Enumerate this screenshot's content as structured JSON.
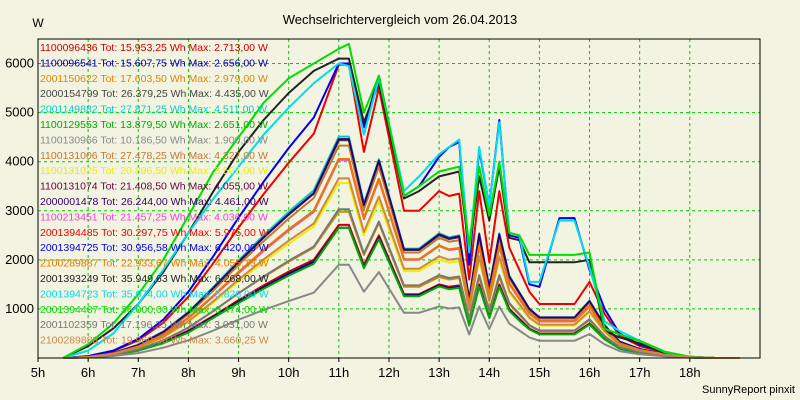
{
  "chart_data": {
    "type": "line",
    "title": "Wechselrichtervergleich vom 26.04.2013",
    "ylabel": "W",
    "xlabel": "",
    "footer": "SunnyReport pinxit",
    "ylim": [
      0,
      6500
    ],
    "yticks": [
      1000,
      2000,
      3000,
      4000,
      5000,
      6000
    ],
    "xlim": [
      5,
      19.4
    ],
    "xticks": [
      {
        "v": 5,
        "label": "5h"
      },
      {
        "v": 6,
        "label": "6h"
      },
      {
        "v": 7,
        "label": "7h"
      },
      {
        "v": 8,
        "label": "8h"
      },
      {
        "v": 9,
        "label": "9h"
      },
      {
        "v": 10,
        "label": "10h"
      },
      {
        "v": 11,
        "label": "11h"
      },
      {
        "v": 12,
        "label": "12h"
      },
      {
        "v": 13,
        "label": "13h"
      },
      {
        "v": 14,
        "label": "14h"
      },
      {
        "v": 15,
        "label": "15h"
      },
      {
        "v": 16,
        "label": "16h"
      },
      {
        "v": 17,
        "label": "17h"
      },
      {
        "v": 18,
        "label": "18h"
      }
    ],
    "grid": true,
    "grid_color": "#00cc00",
    "background": "#f3f3e2",
    "legend_placement": "top-left",
    "x": [
      5.5,
      6.0,
      6.5,
      7.0,
      7.5,
      8.0,
      8.5,
      9.0,
      9.5,
      10.0,
      10.5,
      11.0,
      11.2,
      11.5,
      11.8,
      12.3,
      12.6,
      13.0,
      13.2,
      13.4,
      13.6,
      13.8,
      14.0,
      14.2,
      14.4,
      14.6,
      14.8,
      15.0,
      15.4,
      15.7,
      16.0,
      16.3,
      16.6,
      17.0,
      17.5,
      18.0,
      18.5,
      19.0
    ],
    "legend_entries": [
      {
        "label": "1100096436 Tot: 15.953,25 Wh Max: 2.713,00 W",
        "color": "#cc0000"
      },
      {
        "label": "1100096541 Tot: 15.607,75 Wh Max: 2.656,00 W",
        "color": "#000099"
      },
      {
        "label": "2001150622 Tot: 17.603,50 Wh Max: 2.979,00 W",
        "color": "#dd8800"
      },
      {
        "label": "2000154799 Tot: 26.379,25 Wh Max: 4.435,00 W",
        "color": "#444444"
      },
      {
        "label": "2001149882 Tot: 27.871,25 Wh Max: 4.511,00 W",
        "color": "#00cccc"
      },
      {
        "label": "1100129553 Tot: 13.879,50 Wh Max: 2.651,00 W",
        "color": "#00aa00"
      },
      {
        "label": "1100130966 Tot: 10.186,50 Wh Max: 1.900,00 W",
        "color": "#888888"
      },
      {
        "label": "1100131006 Tot: 27.478,25 Wh Max: 4.327,00 W",
        "color": "#c07838"
      },
      {
        "label": "1100131025 Tot: 20.896,50 Wh Max: 3.565,00 W",
        "color": "#eeee00"
      },
      {
        "label": "1100131074 Tot: 21.408,50 Wh Max: 4.055,00 W",
        "color": "#660044"
      },
      {
        "label": "2000001478 Tot: 26.244,00 Wh Max: 4.461,00 W",
        "color": "#330066"
      },
      {
        "label": "1100213451 Tot: 21.457,25 Wh Max: 4.036,00 W",
        "color": "#ee44cc"
      },
      {
        "label": "2001394485 Tot: 30.297,75 Wh Max: 5.975,00 W",
        "color": "#ee0000"
      },
      {
        "label": "2001394725 Tot: 30.956,58 Wh Max: 6.420,00 W",
        "color": "#0000ee"
      },
      {
        "label": "2100289887 Tot: 22.933,67 Wh Max: 4.055,13 W",
        "color": "#ee7700"
      },
      {
        "label": "2001393249 Tot: 35.949,63 Wh Max: 6.268,00 W",
        "color": "#222222"
      },
      {
        "label": "2001394723 Tot: 35.074,00 Wh Max: 5.826,00 W",
        "color": "#00ddee"
      },
      {
        "label": "2001394487 Tot: 36.000,00 Wh Max: 6.474,00 W",
        "color": "#00dd00"
      },
      {
        "label": "2001102359 Tot: 17.196,25 Wh Max: 3.031,00 W",
        "color": "#777777"
      },
      {
        "label": "2100289888 Tot: 19.960,50 Wh Max: 3.660,25 W",
        "color": "#cc8844"
      }
    ],
    "series": [
      {
        "color": "#cc0000",
        "values": [
          0,
          15,
          60,
          160,
          320,
          560,
          860,
          1180,
          1480,
          1760,
          2000,
          2713,
          2713,
          1900,
          2500,
          1300,
          1300,
          1500,
          1450,
          1480,
          700,
          1500,
          850,
          1500,
          1000,
          800,
          600,
          500,
          500,
          500,
          700,
          400,
          200,
          110,
          50,
          10,
          0,
          0
        ]
      },
      {
        "color": "#000099",
        "values": [
          0,
          15,
          60,
          155,
          310,
          540,
          840,
          1150,
          1440,
          1720,
          1960,
          2656,
          2656,
          1850,
          2450,
          1280,
          1280,
          1480,
          1420,
          1450,
          680,
          1470,
          830,
          1470,
          980,
          780,
          590,
          490,
          490,
          490,
          690,
          390,
          190,
          105,
          48,
          10,
          0,
          0
        ]
      },
      {
        "color": "#dd8800",
        "values": [
          0,
          18,
          70,
          180,
          360,
          620,
          960,
          1320,
          1650,
          1960,
          2250,
          2979,
          2979,
          2100,
          2750,
          1450,
          1450,
          1650,
          1600,
          1630,
          780,
          1650,
          940,
          1650,
          1100,
          880,
          660,
          550,
          550,
          550,
          770,
          440,
          220,
          120,
          55,
          12,
          0,
          0
        ]
      },
      {
        "color": "#444444",
        "values": [
          0,
          25,
          100,
          260,
          530,
          920,
          1420,
          1950,
          2450,
          2920,
          3350,
          4435,
          4435,
          3100,
          4000,
          2200,
          2200,
          2500,
          2420,
          2460,
          1180,
          2500,
          1420,
          2500,
          1650,
          1320,
          990,
          820,
          820,
          820,
          1150,
          660,
          330,
          180,
          80,
          18,
          0,
          0
        ]
      },
      {
        "color": "#00cccc",
        "values": [
          0,
          26,
          105,
          270,
          540,
          940,
          1450,
          1990,
          2500,
          2980,
          3420,
          4511,
          4511,
          3150,
          4050,
          2230,
          2230,
          2540,
          2460,
          2500,
          1200,
          2540,
          1440,
          2540,
          1680,
          1340,
          1000,
          830,
          830,
          830,
          1170,
          670,
          335,
          185,
          82,
          18,
          0,
          0
        ]
      },
      {
        "color": "#00aa00",
        "values": [
          0,
          15,
          58,
          150,
          300,
          520,
          820,
          1120,
          1410,
          1680,
          1920,
          2651,
          2651,
          1830,
          2420,
          1260,
          1260,
          1460,
          1400,
          1430,
          660,
          1450,
          810,
          1450,
          960,
          760,
          580,
          480,
          480,
          480,
          680,
          380,
          190,
          100,
          46,
          10,
          0,
          0
        ]
      },
      {
        "color": "#888888",
        "values": [
          0,
          10,
          40,
          100,
          210,
          360,
          560,
          780,
          980,
          1160,
          1330,
          1900,
          1900,
          1350,
          1750,
          920,
          920,
          1050,
          1010,
          1030,
          480,
          1050,
          590,
          1050,
          700,
          560,
          420,
          350,
          350,
          350,
          490,
          280,
          140,
          75,
          35,
          8,
          0,
          0
        ]
      },
      {
        "color": "#c07838",
        "values": [
          0,
          24,
          98,
          255,
          510,
          890,
          1380,
          1900,
          2380,
          2840,
          3260,
          4327,
          4327,
          3030,
          3900,
          2150,
          2150,
          2450,
          2370,
          2400,
          1150,
          2450,
          1390,
          2450,
          1620,
          1300,
          970,
          800,
          800,
          800,
          1120,
          640,
          320,
          175,
          78,
          17,
          0,
          0
        ]
      },
      {
        "color": "#eeee00",
        "values": [
          0,
          20,
          80,
          210,
          420,
          730,
          1130,
          1560,
          1960,
          2330,
          2680,
          3565,
          3565,
          2500,
          3200,
          1770,
          1770,
          2010,
          1940,
          1970,
          950,
          2010,
          1140,
          2010,
          1330,
          1070,
          800,
          660,
          660,
          660,
          930,
          530,
          265,
          145,
          65,
          14,
          0,
          0
        ]
      },
      {
        "color": "#660044",
        "values": [
          0,
          22,
          90,
          235,
          470,
          820,
          1270,
          1750,
          2200,
          2620,
          3000,
          4055,
          4055,
          2850,
          3650,
          2010,
          2010,
          2290,
          2210,
          2240,
          1080,
          2290,
          1300,
          2290,
          1520,
          1210,
          910,
          750,
          750,
          750,
          1050,
          600,
          300,
          165,
          73,
          16,
          0,
          0
        ]
      },
      {
        "color": "#330066",
        "values": [
          0,
          25,
          100,
          262,
          532,
          925,
          1430,
          1960,
          2460,
          2930,
          3360,
          4461,
          4461,
          3120,
          4020,
          2210,
          2210,
          2520,
          2440,
          2480,
          1190,
          2520,
          1430,
          2520,
          1660,
          1330,
          1000,
          825,
          825,
          825,
          1160,
          665,
          332,
          182,
          81,
          18,
          0,
          0
        ]
      },
      {
        "color": "#ee44cc",
        "values": [
          0,
          22,
          89,
          233,
          466,
          812,
          1260,
          1730,
          2180,
          2600,
          2980,
          4036,
          4036,
          2830,
          3630,
          2000,
          2000,
          2280,
          2200,
          2230,
          1070,
          2280,
          1290,
          2280,
          1510,
          1200,
          900,
          745,
          745,
          745,
          1045,
          598,
          298,
          163,
          72,
          16,
          0,
          0
        ]
      },
      {
        "color": "#ee0000",
        "values": [
          0,
          35,
          140,
          360,
          720,
          1250,
          1940,
          2660,
          3340,
          3980,
          4570,
          5975,
          5975,
          4200,
          5500,
          3000,
          3000,
          3400,
          3300,
          3350,
          1600,
          3400,
          1950,
          3400,
          2250,
          1800,
          1350,
          1100,
          1100,
          1100,
          1550,
          900,
          450,
          245,
          110,
          24,
          0,
          0
        ]
      },
      {
        "color": "#0000ee",
        "values": [
          0,
          38,
          150,
          390,
          780,
          1350,
          2080,
          2860,
          3590,
          4280,
          4900,
          6000,
          6000,
          4700,
          5750,
          3300,
          3500,
          4100,
          4300,
          4400,
          1900,
          4250,
          3100,
          4850,
          2500,
          2450,
          1500,
          1450,
          2850,
          2850,
          1800,
          1000,
          500,
          270,
          120,
          25,
          0,
          0
        ]
      },
      {
        "color": "#ee7700",
        "values": [
          0,
          23,
          90,
          236,
          470,
          820,
          1270,
          1750,
          2200,
          2620,
          3000,
          4055,
          4055,
          2850,
          3650,
          2010,
          2010,
          2290,
          2210,
          2240,
          1080,
          2290,
          1300,
          2290,
          1520,
          1210,
          910,
          750,
          750,
          750,
          1050,
          600,
          300,
          165,
          73,
          16,
          0,
          0
        ]
      },
      {
        "color": "#222222",
        "values": [
          0,
          240,
          600,
          1100,
          1750,
          2550,
          3400,
          4200,
          4850,
          5400,
          5850,
          6100,
          6100,
          4800,
          5600,
          3250,
          3400,
          3700,
          3750,
          3800,
          2200,
          3700,
          2800,
          3900,
          2450,
          2400,
          1950,
          1950,
          1950,
          1950,
          2000,
          550,
          420,
          300,
          100,
          20,
          0,
          0
        ]
      },
      {
        "color": "#00ddee",
        "values": [
          0,
          150,
          500,
          1100,
          1800,
          2550,
          3250,
          3900,
          4550,
          5100,
          5600,
          6000,
          5950,
          4550,
          5700,
          3400,
          3700,
          4150,
          4300,
          4450,
          2150,
          4300,
          3100,
          4800,
          2550,
          2500,
          1550,
          1550,
          2800,
          2800,
          1850,
          750,
          550,
          350,
          120,
          25,
          0,
          0
        ]
      },
      {
        "color": "#00dd00",
        "values": [
          0,
          280,
          700,
          1300,
          2000,
          2900,
          3800,
          4500,
          5200,
          5700,
          6000,
          6300,
          6400,
          5000,
          5750,
          3300,
          3500,
          3800,
          3850,
          3900,
          2300,
          3900,
          2900,
          4000,
          2550,
          2500,
          2100,
          2100,
          2100,
          2100,
          2150,
          600,
          480,
          350,
          130,
          25,
          0,
          0
        ]
      },
      {
        "color": "#777777",
        "values": [
          0,
          17,
          68,
          178,
          356,
          620,
          960,
          1320,
          1660,
          1980,
          2270,
          3031,
          3031,
          2130,
          2780,
          1480,
          1480,
          1690,
          1630,
          1660,
          800,
          1690,
          960,
          1690,
          1120,
          900,
          670,
          560,
          560,
          560,
          790,
          450,
          225,
          122,
          55,
          12,
          0,
          0
        ]
      },
      {
        "color": "#cc8844",
        "values": [
          0,
          20,
          82,
          215,
          430,
          750,
          1160,
          1600,
          2010,
          2390,
          2740,
          3660,
          3660,
          2570,
          3290,
          1820,
          1820,
          2070,
          2000,
          2030,
          980,
          2070,
          1170,
          2070,
          1370,
          1100,
          825,
          680,
          680,
          680,
          955,
          545,
          272,
          148,
          67,
          15,
          0,
          0
        ]
      }
    ]
  }
}
